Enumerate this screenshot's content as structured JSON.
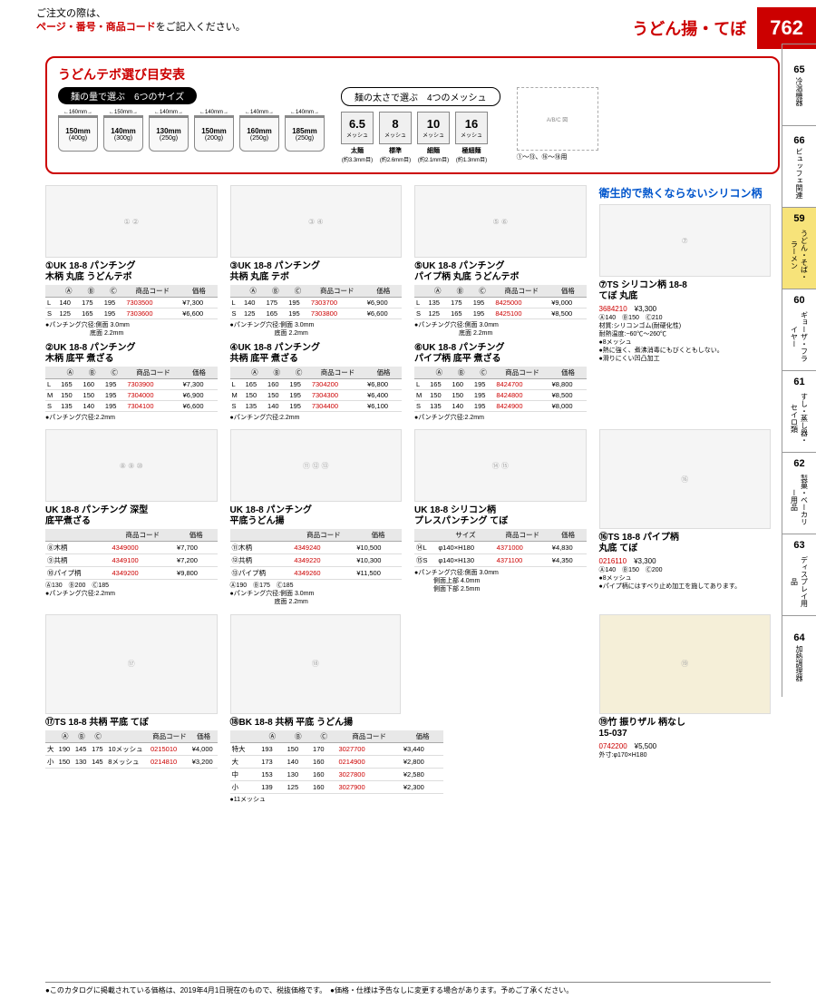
{
  "header": {
    "order_note_1": "ご注文の際は、",
    "order_note_2": "ページ・番号・商品コード",
    "order_note_3": "をご記入ください。",
    "page_title": "うどん揚・てぼ",
    "page_number": "762"
  },
  "guide": {
    "title": "うどんテボ選び目安表",
    "quantity_pill": "麺の量で選ぶ　6つのサイズ",
    "mesh_pill": "麺の太さで選ぶ　4つのメッシュ",
    "sizes": [
      {
        "top": "160mm",
        "mm": "150mm",
        "g": "400g"
      },
      {
        "top": "150mm",
        "mm": "140mm",
        "g": "300g"
      },
      {
        "top": "140mm",
        "mm": "130mm",
        "g": "250g"
      },
      {
        "top": "140mm",
        "mm": "150mm",
        "g": "200g"
      },
      {
        "top": "140mm",
        "mm": "160mm",
        "g": "250g"
      },
      {
        "top": "140mm",
        "mm": "185mm",
        "g": "250g"
      }
    ],
    "meshes": [
      {
        "num": "6.5",
        "unit": "メッシュ",
        "lbl": "太麺",
        "sub": "(約3.3mm目)"
      },
      {
        "num": "8",
        "unit": "メッシュ",
        "lbl": "標準",
        "sub": "(約2.6mm目)"
      },
      {
        "num": "10",
        "unit": "メッシュ",
        "lbl": "細麺",
        "sub": "(約2.1mm目)"
      },
      {
        "num": "16",
        "unit": "メッシュ",
        "lbl": "極細麺",
        "sub": "(約1.3mm目)"
      }
    ],
    "diagram_note": "①〜⑬、⑯〜⑱用"
  },
  "sidebar": [
    {
      "num": "65",
      "label": "冷温機器",
      "active": false
    },
    {
      "num": "66",
      "label": "ビュッフェ関連",
      "active": false
    },
    {
      "num": "59",
      "label": "うどん・そば・ラーメン",
      "active": true
    },
    {
      "num": "60",
      "label": "ギョーザ・フライヤー",
      "active": false
    },
    {
      "num": "61",
      "label": "すし・蒸し器・セイロ類",
      "active": false
    },
    {
      "num": "62",
      "label": "製菓・ベーカリー用品",
      "active": false
    },
    {
      "num": "63",
      "label": "ディスプレイ用品",
      "active": false
    },
    {
      "num": "64",
      "label": "加熱調理器",
      "active": false
    }
  ],
  "table_headers_abc": {
    "a": "Ⓐ",
    "b": "Ⓑ",
    "c": "Ⓒ",
    "code": "商品コード",
    "price": "価格"
  },
  "table_headers_size": {
    "size": "サイズ",
    "code": "商品コード",
    "price": "価格"
  },
  "blue_banner": "衛生的で熱くならないシリコン柄",
  "products": {
    "p1": {
      "num": "①",
      "title": "UK 18-8 パンチング\n木柄 丸底 うどんテボ",
      "rows": [
        {
          "s": "L",
          "a": "140",
          "b": "175",
          "c": "195",
          "code": "7303500",
          "price": "¥7,300"
        },
        {
          "s": "S",
          "a": "125",
          "b": "165",
          "c": "195",
          "code": "7303600",
          "price": "¥6,600"
        }
      ],
      "note": "●パンチング穴径:側面 3.0mm\n　　　　　　　底面 2.2mm"
    },
    "p2": {
      "num": "②",
      "title": "UK 18-8 パンチング\n木柄 底平 煮ざる",
      "rows": [
        {
          "s": "L",
          "a": "165",
          "b": "160",
          "c": "195",
          "code": "7303900",
          "price": "¥7,300"
        },
        {
          "s": "M",
          "a": "150",
          "b": "150",
          "c": "195",
          "code": "7304000",
          "price": "¥6,900"
        },
        {
          "s": "S",
          "a": "135",
          "b": "140",
          "c": "195",
          "code": "7304100",
          "price": "¥6,600"
        }
      ],
      "note": "●パンチング穴径:2.2mm"
    },
    "p3": {
      "num": "③",
      "title": "UK 18-8 パンチング\n共柄 丸底 テボ",
      "rows": [
        {
          "s": "L",
          "a": "140",
          "b": "175",
          "c": "195",
          "code": "7303700",
          "price": "¥6,900"
        },
        {
          "s": "S",
          "a": "125",
          "b": "165",
          "c": "195",
          "code": "7303800",
          "price": "¥6,600"
        }
      ],
      "note": "●パンチング穴径:側面 3.0mm\n　　　　　　　底面 2.2mm"
    },
    "p4": {
      "num": "④",
      "title": "UK 18-8 パンチング\n共柄 底平 煮ざる",
      "rows": [
        {
          "s": "L",
          "a": "165",
          "b": "160",
          "c": "195",
          "code": "7304200",
          "price": "¥6,800"
        },
        {
          "s": "M",
          "a": "150",
          "b": "150",
          "c": "195",
          "code": "7304300",
          "price": "¥6,400"
        },
        {
          "s": "S",
          "a": "135",
          "b": "140",
          "c": "195",
          "code": "7304400",
          "price": "¥6,100"
        }
      ],
      "note": "●パンチング穴径:2.2mm"
    },
    "p5": {
      "num": "⑤",
      "title": "UK 18-8 パンチング\nパイプ柄 丸底 うどんテボ",
      "rows": [
        {
          "s": "L",
          "a": "135",
          "b": "175",
          "c": "195",
          "code": "8425000",
          "price": "¥9,000"
        },
        {
          "s": "S",
          "a": "125",
          "b": "165",
          "c": "195",
          "code": "8425100",
          "price": "¥8,500"
        }
      ],
      "note": "●パンチング穴径:側面 3.0mm\n　　　　　　　底面 2.2mm"
    },
    "p6": {
      "num": "⑥",
      "title": "UK 18-8 パンチング\nパイプ柄 底平 煮ざる",
      "rows": [
        {
          "s": "L",
          "a": "165",
          "b": "160",
          "c": "195",
          "code": "8424700",
          "price": "¥8,800"
        },
        {
          "s": "M",
          "a": "150",
          "b": "150",
          "c": "195",
          "code": "8424800",
          "price": "¥8,500"
        },
        {
          "s": "S",
          "a": "135",
          "b": "140",
          "c": "195",
          "code": "8424900",
          "price": "¥8,000"
        }
      ],
      "note": "●パンチング穴径:2.2mm"
    },
    "p7": {
      "num": "⑦",
      "title": "TS シリコン柄 18-8\nてぼ 丸底",
      "code": "3684210",
      "price": "¥3,300",
      "dims": "Ⓐ140　Ⓑ150　Ⓒ210",
      "note": "材質:シリコンゴム(耐硬化性)\n耐熱温度:−60℃〜260℃\n●8メッシュ\n●熱に強く、煮沸消毒にもびくともしない。\n●滑りにくい凹凸加工"
    },
    "p8_10": {
      "title": "UK 18-8 パンチング 深型\n底平煮ざる",
      "rows": [
        {
          "n": "⑧",
          "s": "木柄",
          "code": "4349000",
          "price": "¥7,700"
        },
        {
          "n": "⑨",
          "s": "共柄",
          "code": "4349100",
          "price": "¥7,200"
        },
        {
          "n": "⑩",
          "s": "パイプ柄",
          "code": "4349200",
          "price": "¥9,800"
        }
      ],
      "dims": "Ⓐ130　Ⓑ200　Ⓒ185",
      "note": "●パンチング穴径:2.2mm"
    },
    "p11_13": {
      "title": "UK 18-8 パンチング\n平底うどん揚",
      "rows": [
        {
          "n": "⑪",
          "s": "木柄",
          "code": "4349240",
          "price": "¥10,500"
        },
        {
          "n": "⑫",
          "s": "共柄",
          "code": "4349220",
          "price": "¥10,300"
        },
        {
          "n": "⑬",
          "s": "パイプ柄",
          "code": "4349260",
          "price": "¥11,500"
        }
      ],
      "dims": "Ⓐ190　Ⓑ175　Ⓒ185",
      "note": "●パンチング穴径:側面 3.0mm\n　　　　　　　底面 2.2mm"
    },
    "p14_15": {
      "title": "UK 18-8 シリコン柄\nプレスパンチング てぼ",
      "rows": [
        {
          "n": "⑭",
          "s": "L",
          "size": "φ140×H180",
          "code": "4371000",
          "price": "¥4,830"
        },
        {
          "n": "⑮",
          "s": "S",
          "size": "φ140×H130",
          "code": "4371100",
          "price": "¥4,350"
        }
      ],
      "note": "●パンチング穴径:側面 3.0mm\n　　　側面上部 4.0mm\n　　　側面下部 2.5mm"
    },
    "p16": {
      "num": "⑯",
      "title": "TS 18-8 パイプ柄\n丸底 てぼ",
      "code": "0216110",
      "price": "¥3,300",
      "dims": "Ⓐ140　Ⓑ150　Ⓒ200",
      "note": "●8メッシュ\n●パイプ柄にはすべり止め加工を施してあります。"
    },
    "p17": {
      "num": "⑰",
      "title": "TS 18-8 共柄 平底 てぼ",
      "rows": [
        {
          "s": "大",
          "a": "190",
          "b": "145",
          "c": "175",
          "mesh": "10メッシュ",
          "code": "0215010",
          "price": "¥4,000"
        },
        {
          "s": "小",
          "a": "150",
          "b": "130",
          "c": "145",
          "mesh": "8メッシュ",
          "code": "0214810",
          "price": "¥3,200"
        }
      ]
    },
    "p18": {
      "num": "⑱",
      "title": "BK 18-8 共柄 平底 うどん揚",
      "rows": [
        {
          "s": "特大",
          "a": "193",
          "b": "150",
          "c": "170",
          "code": "3027700",
          "price": "¥3,440"
        },
        {
          "s": "大",
          "a": "173",
          "b": "140",
          "c": "160",
          "code": "0214900",
          "price": "¥2,800"
        },
        {
          "s": "中",
          "a": "153",
          "b": "130",
          "c": "160",
          "code": "3027800",
          "price": "¥2,580"
        },
        {
          "s": "小",
          "a": "139",
          "b": "125",
          "c": "160",
          "code": "3027900",
          "price": "¥2,300"
        }
      ],
      "note": "●11メッシュ"
    },
    "p19": {
      "num": "⑲",
      "title": "竹 振りザル 柄なし\n15-037",
      "code": "0742200",
      "price": "¥5,500",
      "dims": "外寸:φ170×H180"
    }
  },
  "footer": "●このカタログに掲載されている価格は、2019年4月1日現在のもので、税抜価格です。　●価格・仕様は予告なしに変更する場合があります。予めご了承ください。"
}
